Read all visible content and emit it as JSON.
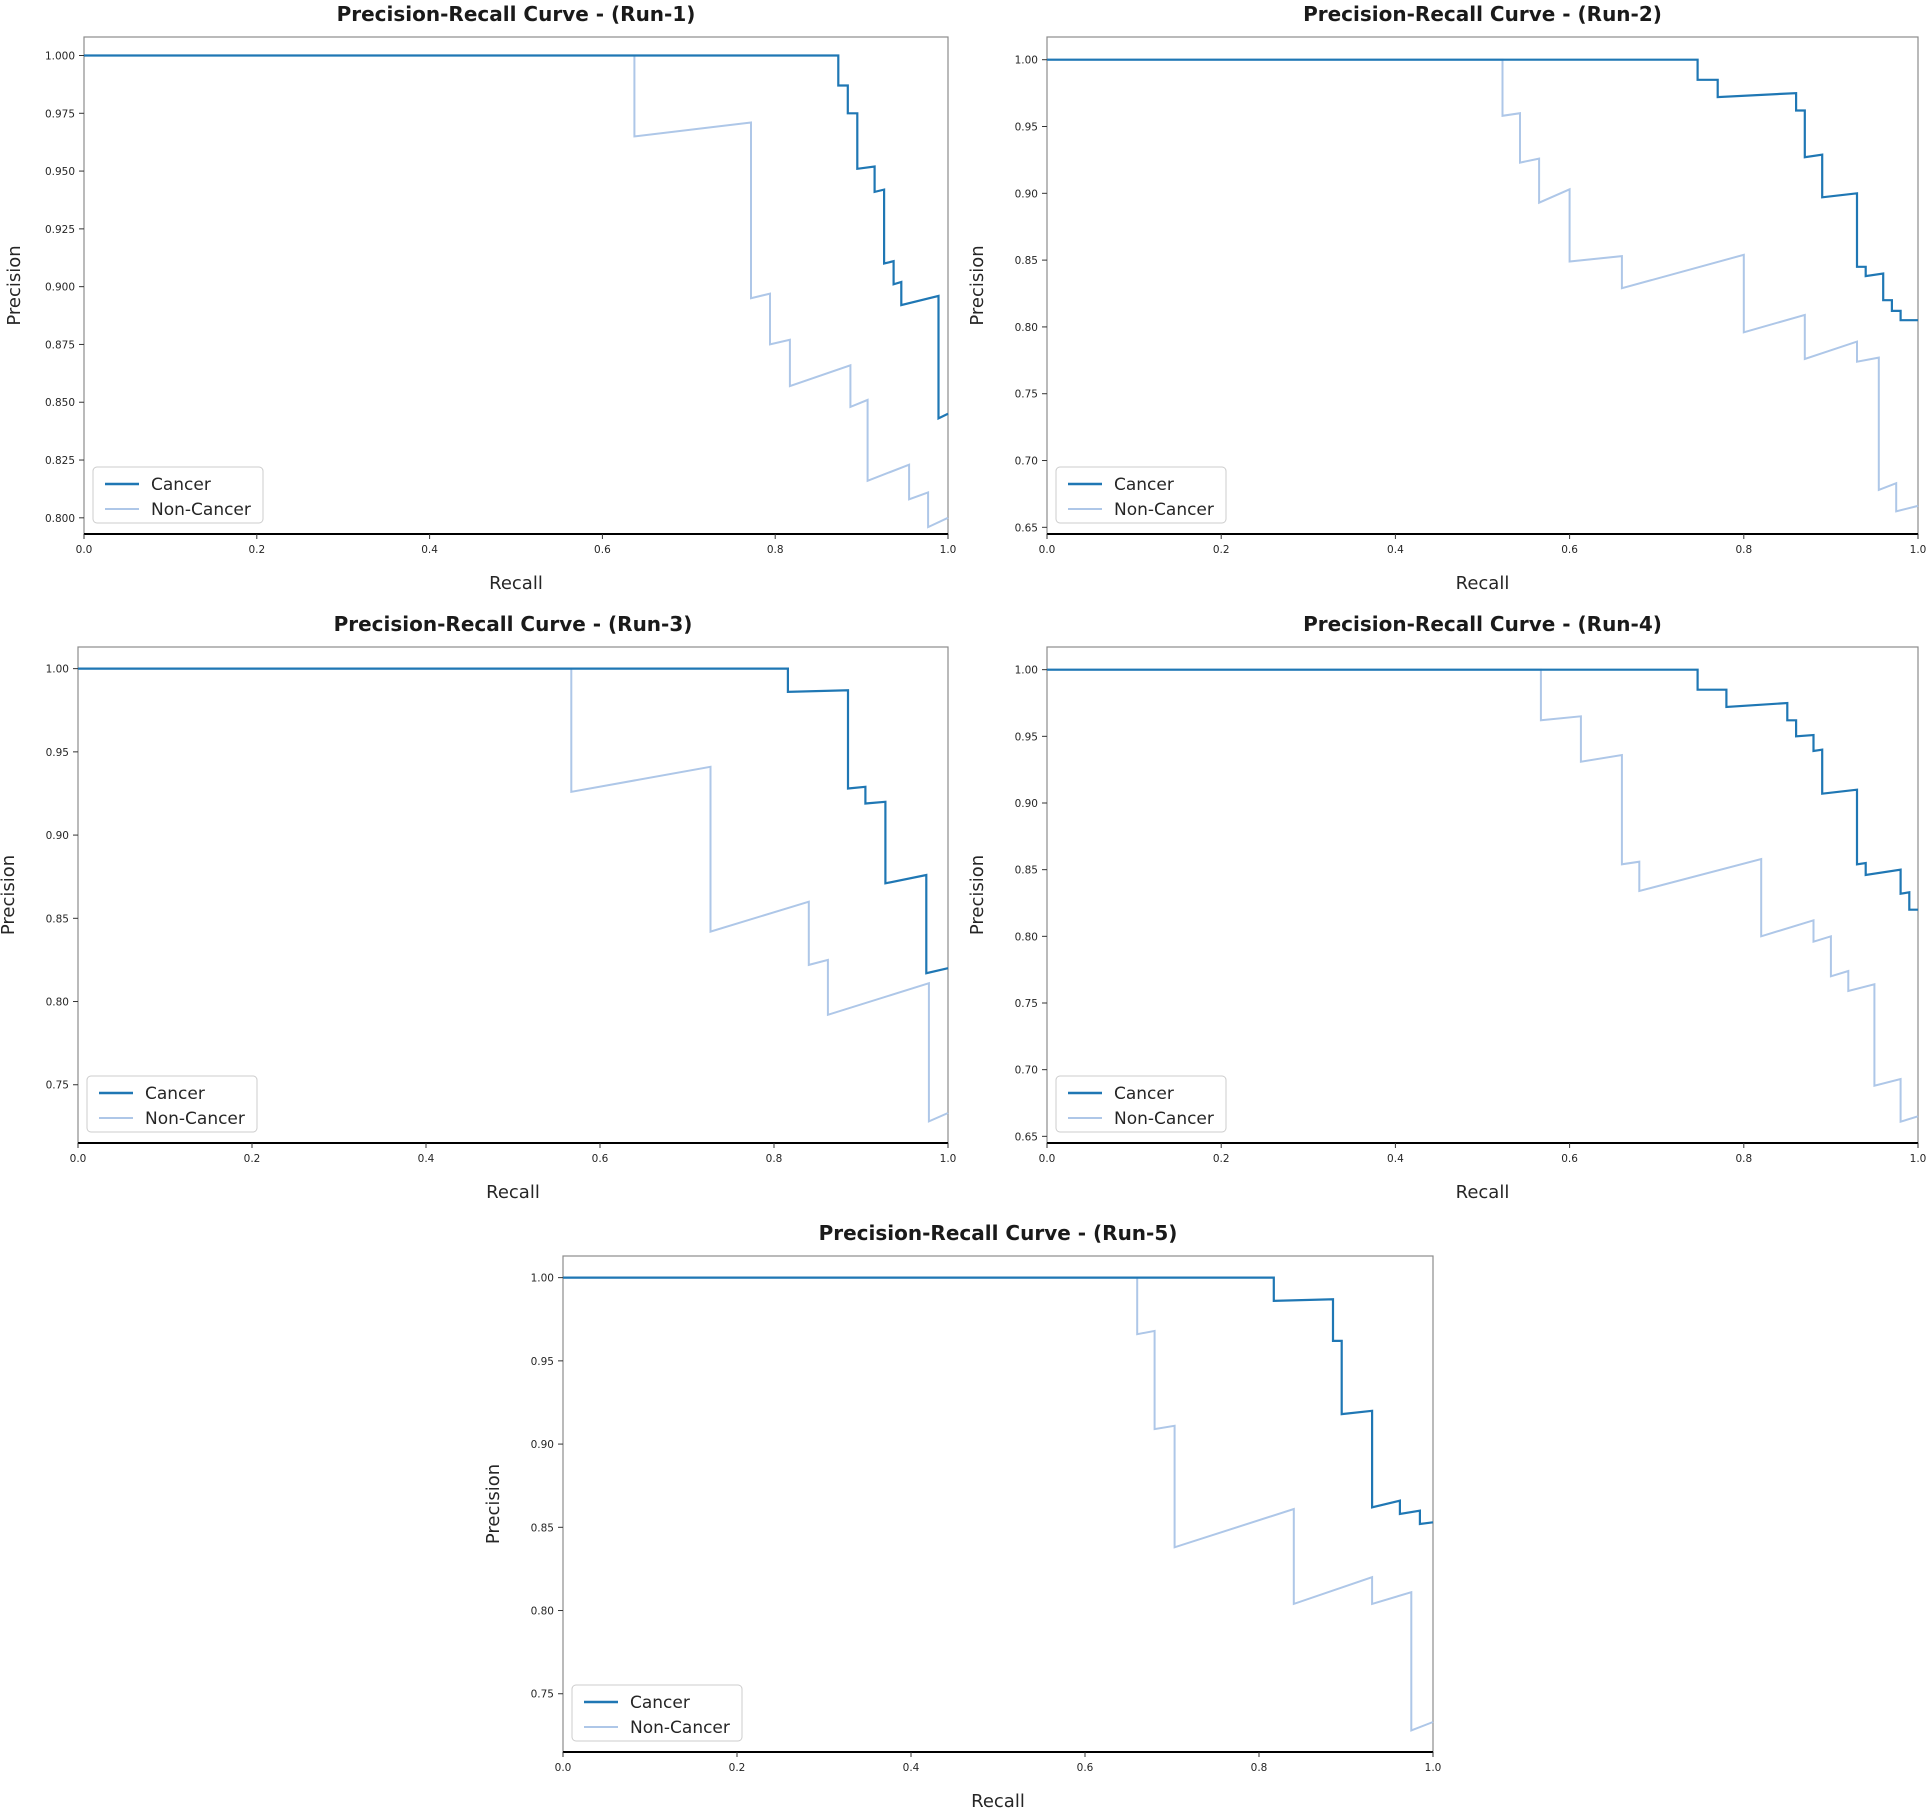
{
  "figure": {
    "background": "#ffffff"
  },
  "colors": {
    "Cancer": "#1f77b4",
    "Non-Cancer": "#aec7e8"
  },
  "chart_data": [
    {
      "id": "run-1",
      "type": "line",
      "drawstyle": "steps",
      "title": "Precision-Recall Curve - (Run-1)",
      "xlabel": "Recall",
      "ylabel": "Precision",
      "xlim": [
        0,
        1
      ],
      "ylim": [
        0.793,
        1.008
      ],
      "xticks": [
        0.0,
        0.2,
        0.4,
        0.6,
        0.8,
        1.0
      ],
      "xtick_labels": [
        "0.0",
        "0.2",
        "0.4",
        "0.6",
        "0.8",
        "1.0"
      ],
      "yticks": [
        0.8,
        0.825,
        0.85,
        0.875,
        0.9,
        0.925,
        0.95,
        0.975,
        1.0
      ],
      "ytick_labels": [
        "0.800",
        "0.825",
        "0.850",
        "0.875",
        "0.900",
        "0.925",
        "0.950",
        "0.975",
        "1.000"
      ],
      "grid": false,
      "legend": {
        "location": "lower-left",
        "entries": [
          "Cancer",
          "Non-Cancer"
        ]
      },
      "series": [
        {
          "name": "Cancer",
          "points": [
            [
              0,
              1.0
            ],
            [
              0.873,
              1.0
            ],
            [
              0.873,
              0.987
            ],
            [
              0.884,
              0.987
            ],
            [
              0.884,
              0.975
            ],
            [
              0.895,
              0.975
            ],
            [
              0.895,
              0.951
            ],
            [
              0.915,
              0.952
            ],
            [
              0.915,
              0.941
            ],
            [
              0.926,
              0.942
            ],
            [
              0.926,
              0.91
            ],
            [
              0.937,
              0.911
            ],
            [
              0.937,
              0.901
            ],
            [
              0.946,
              0.902
            ],
            [
              0.946,
              0.892
            ],
            [
              0.989,
              0.896
            ],
            [
              0.989,
              0.843
            ],
            [
              1.0,
              0.845
            ]
          ]
        },
        {
          "name": "Non-Cancer",
          "points": [
            [
              0,
              1.0
            ],
            [
              0.637,
              1.0
            ],
            [
              0.637,
              0.965
            ],
            [
              0.772,
              0.971
            ],
            [
              0.772,
              0.895
            ],
            [
              0.794,
              0.897
            ],
            [
              0.794,
              0.875
            ],
            [
              0.817,
              0.877
            ],
            [
              0.817,
              0.857
            ],
            [
              0.887,
              0.866
            ],
            [
              0.887,
              0.848
            ],
            [
              0.907,
              0.851
            ],
            [
              0.907,
              0.816
            ],
            [
              0.955,
              0.823
            ],
            [
              0.955,
              0.808
            ],
            [
              0.977,
              0.811
            ],
            [
              0.977,
              0.796
            ],
            [
              1.0,
              0.8
            ]
          ]
        }
      ]
    },
    {
      "id": "run-2",
      "type": "line",
      "drawstyle": "steps",
      "title": "Precision-Recall Curve - (Run-2)",
      "xlabel": "Recall",
      "ylabel": "Precision",
      "xlim": [
        0,
        1
      ],
      "ylim": [
        0.645,
        1.017
      ],
      "xticks": [
        0.0,
        0.2,
        0.4,
        0.6,
        0.8,
        1.0
      ],
      "xtick_labels": [
        "0.0",
        "0.2",
        "0.4",
        "0.6",
        "0.8",
        "1.0"
      ],
      "yticks": [
        0.65,
        0.7,
        0.75,
        0.8,
        0.85,
        0.9,
        0.95,
        1.0
      ],
      "ytick_labels": [
        "0.65",
        "0.70",
        "0.75",
        "0.80",
        "0.85",
        "0.90",
        "0.95",
        "1.00"
      ],
      "grid": false,
      "legend": {
        "location": "lower-left",
        "entries": [
          "Cancer",
          "Non-Cancer"
        ]
      },
      "series": [
        {
          "name": "Cancer",
          "points": [
            [
              0,
              1.0
            ],
            [
              0.747,
              1.0
            ],
            [
              0.747,
              0.985
            ],
            [
              0.77,
              0.985
            ],
            [
              0.77,
              0.972
            ],
            [
              0.86,
              0.975
            ],
            [
              0.86,
              0.962
            ],
            [
              0.87,
              0.962
            ],
            [
              0.87,
              0.927
            ],
            [
              0.89,
              0.929
            ],
            [
              0.89,
              0.897
            ],
            [
              0.93,
              0.9
            ],
            [
              0.93,
              0.845
            ],
            [
              0.94,
              0.845
            ],
            [
              0.94,
              0.838
            ],
            [
              0.96,
              0.84
            ],
            [
              0.96,
              0.82
            ],
            [
              0.97,
              0.82
            ],
            [
              0.97,
              0.812
            ],
            [
              0.98,
              0.812
            ],
            [
              0.98,
              0.805
            ],
            [
              1.0,
              0.805
            ]
          ]
        },
        {
          "name": "Non-Cancer",
          "points": [
            [
              0,
              1.0
            ],
            [
              0.523,
              1.0
            ],
            [
              0.523,
              0.958
            ],
            [
              0.543,
              0.96
            ],
            [
              0.543,
              0.923
            ],
            [
              0.565,
              0.926
            ],
            [
              0.565,
              0.893
            ],
            [
              0.6,
              0.903
            ],
            [
              0.6,
              0.849
            ],
            [
              0.66,
              0.853
            ],
            [
              0.66,
              0.829
            ],
            [
              0.8,
              0.854
            ],
            [
              0.8,
              0.796
            ],
            [
              0.87,
              0.809
            ],
            [
              0.87,
              0.776
            ],
            [
              0.93,
              0.789
            ],
            [
              0.93,
              0.774
            ],
            [
              0.955,
              0.777
            ],
            [
              0.955,
              0.678
            ],
            [
              0.975,
              0.683
            ],
            [
              0.975,
              0.662
            ],
            [
              1.0,
              0.666
            ]
          ]
        }
      ]
    },
    {
      "id": "run-3",
      "type": "line",
      "drawstyle": "steps",
      "title": "Precision-Recall Curve - (Run-3)",
      "xlabel": "Recall",
      "ylabel": "Precision",
      "xlim": [
        0,
        1
      ],
      "ylim": [
        0.715,
        1.013
      ],
      "xticks": [
        0.0,
        0.2,
        0.4,
        0.6,
        0.8,
        1.0
      ],
      "xtick_labels": [
        "0.0",
        "0.2",
        "0.4",
        "0.6",
        "0.8",
        "1.0"
      ],
      "yticks": [
        0.75,
        0.8,
        0.85,
        0.9,
        0.95,
        1.0
      ],
      "ytick_labels": [
        "0.75",
        "0.80",
        "0.85",
        "0.90",
        "0.95",
        "1.00"
      ],
      "grid": false,
      "legend": {
        "location": "lower-left",
        "entries": [
          "Cancer",
          "Non-Cancer"
        ]
      },
      "series": [
        {
          "name": "Cancer",
          "points": [
            [
              0,
              1.0
            ],
            [
              0.816,
              1.0
            ],
            [
              0.816,
              0.986
            ],
            [
              0.885,
              0.987
            ],
            [
              0.885,
              0.928
            ],
            [
              0.905,
              0.929
            ],
            [
              0.905,
              0.919
            ],
            [
              0.928,
              0.92
            ],
            [
              0.928,
              0.871
            ],
            [
              0.975,
              0.876
            ],
            [
              0.975,
              0.817
            ],
            [
              1.0,
              0.82
            ]
          ]
        },
        {
          "name": "Non-Cancer",
          "points": [
            [
              0,
              1.0
            ],
            [
              0.567,
              1.0
            ],
            [
              0.567,
              0.926
            ],
            [
              0.727,
              0.941
            ],
            [
              0.727,
              0.842
            ],
            [
              0.84,
              0.86
            ],
            [
              0.84,
              0.822
            ],
            [
              0.862,
              0.825
            ],
            [
              0.862,
              0.792
            ],
            [
              0.978,
              0.811
            ],
            [
              0.978,
              0.728
            ],
            [
              1.0,
              0.733
            ]
          ]
        }
      ]
    },
    {
      "id": "run-4",
      "type": "line",
      "drawstyle": "steps",
      "title": "Precision-Recall Curve - (Run-4)",
      "xlabel": "Recall",
      "ylabel": "Precision",
      "xlim": [
        0,
        1
      ],
      "ylim": [
        0.645,
        1.017
      ],
      "xticks": [
        0.0,
        0.2,
        0.4,
        0.6,
        0.8,
        1.0
      ],
      "xtick_labels": [
        "0.0",
        "0.2",
        "0.4",
        "0.6",
        "0.8",
        "1.0"
      ],
      "yticks": [
        0.65,
        0.7,
        0.75,
        0.8,
        0.85,
        0.9,
        0.95,
        1.0
      ],
      "ytick_labels": [
        "0.65",
        "0.70",
        "0.75",
        "0.80",
        "0.85",
        "0.90",
        "0.95",
        "1.00"
      ],
      "grid": false,
      "legend": {
        "location": "lower-left",
        "entries": [
          "Cancer",
          "Non-Cancer"
        ]
      },
      "series": [
        {
          "name": "Cancer",
          "points": [
            [
              0,
              1.0
            ],
            [
              0.747,
              1.0
            ],
            [
              0.747,
              0.985
            ],
            [
              0.78,
              0.985
            ],
            [
              0.78,
              0.972
            ],
            [
              0.85,
              0.975
            ],
            [
              0.85,
              0.962
            ],
            [
              0.86,
              0.962
            ],
            [
              0.86,
              0.95
            ],
            [
              0.88,
              0.951
            ],
            [
              0.88,
              0.939
            ],
            [
              0.89,
              0.94
            ],
            [
              0.89,
              0.907
            ],
            [
              0.93,
              0.91
            ],
            [
              0.93,
              0.854
            ],
            [
              0.94,
              0.855
            ],
            [
              0.94,
              0.846
            ],
            [
              0.98,
              0.85
            ],
            [
              0.98,
              0.832
            ],
            [
              0.99,
              0.833
            ],
            [
              0.99,
              0.82
            ],
            [
              1.0,
              0.82
            ]
          ]
        },
        {
          "name": "Non-Cancer",
          "points": [
            [
              0,
              1.0
            ],
            [
              0.567,
              1.0
            ],
            [
              0.567,
              0.962
            ],
            [
              0.613,
              0.965
            ],
            [
              0.613,
              0.931
            ],
            [
              0.66,
              0.936
            ],
            [
              0.66,
              0.854
            ],
            [
              0.68,
              0.856
            ],
            [
              0.68,
              0.834
            ],
            [
              0.82,
              0.858
            ],
            [
              0.82,
              0.8
            ],
            [
              0.88,
              0.812
            ],
            [
              0.88,
              0.796
            ],
            [
              0.9,
              0.8
            ],
            [
              0.9,
              0.77
            ],
            [
              0.92,
              0.774
            ],
            [
              0.92,
              0.759
            ],
            [
              0.95,
              0.764
            ],
            [
              0.95,
              0.688
            ],
            [
              0.98,
              0.693
            ],
            [
              0.98,
              0.661
            ],
            [
              1.0,
              0.665
            ]
          ]
        }
      ]
    },
    {
      "id": "run-5",
      "type": "line",
      "drawstyle": "steps",
      "title": "Precision-Recall Curve - (Run-5)",
      "xlabel": "Recall",
      "ylabel": "Precision",
      "xlim": [
        0,
        1
      ],
      "ylim": [
        0.715,
        1.013
      ],
      "xticks": [
        0.0,
        0.2,
        0.4,
        0.6,
        0.8,
        1.0
      ],
      "xtick_labels": [
        "0.0",
        "0.2",
        "0.4",
        "0.6",
        "0.8",
        "1.0"
      ],
      "yticks": [
        0.75,
        0.8,
        0.85,
        0.9,
        0.95,
        1.0
      ],
      "ytick_labels": [
        "0.75",
        "0.80",
        "0.85",
        "0.90",
        "0.95",
        "1.00"
      ],
      "grid": false,
      "legend": {
        "location": "lower-left",
        "entries": [
          "Cancer",
          "Non-Cancer"
        ]
      },
      "series": [
        {
          "name": "Cancer",
          "points": [
            [
              0,
              1.0
            ],
            [
              0.817,
              1.0
            ],
            [
              0.817,
              0.986
            ],
            [
              0.885,
              0.987
            ],
            [
              0.885,
              0.962
            ],
            [
              0.895,
              0.962
            ],
            [
              0.895,
              0.918
            ],
            [
              0.93,
              0.92
            ],
            [
              0.93,
              0.862
            ],
            [
              0.962,
              0.866
            ],
            [
              0.962,
              0.858
            ],
            [
              0.985,
              0.86
            ],
            [
              0.985,
              0.852
            ],
            [
              1.0,
              0.853
            ]
          ]
        },
        {
          "name": "Non-Cancer",
          "points": [
            [
              0,
              1.0
            ],
            [
              0.66,
              1.0
            ],
            [
              0.66,
              0.966
            ],
            [
              0.68,
              0.968
            ],
            [
              0.68,
              0.909
            ],
            [
              0.703,
              0.911
            ],
            [
              0.703,
              0.838
            ],
            [
              0.84,
              0.861
            ],
            [
              0.84,
              0.804
            ],
            [
              0.93,
              0.82
            ],
            [
              0.93,
              0.804
            ],
            [
              0.975,
              0.811
            ],
            [
              0.975,
              0.728
            ],
            [
              1.0,
              0.733
            ]
          ]
        }
      ]
    }
  ]
}
